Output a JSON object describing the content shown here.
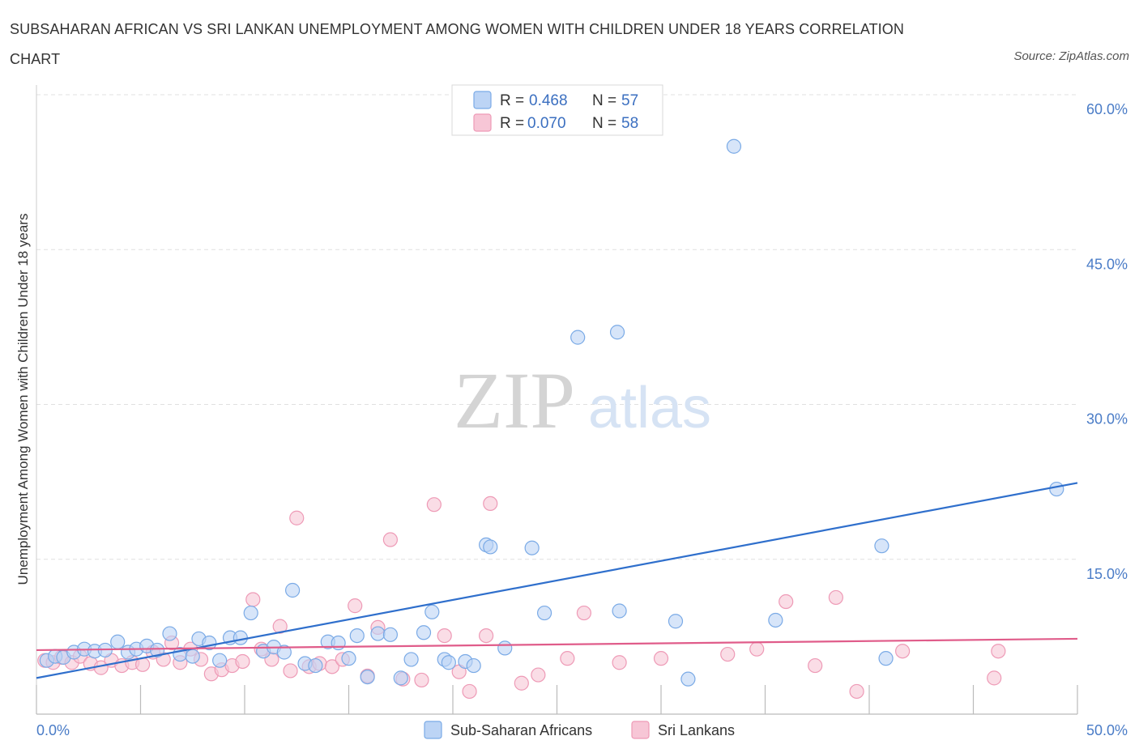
{
  "title": "SUBSAHARAN AFRICAN VS SRI LANKAN UNEMPLOYMENT AMONG WOMEN WITH CHILDREN UNDER 18 YEARS CORRELATION CHART",
  "source": "Source: ZipAtlas.com",
  "watermark": {
    "zip": "ZIP",
    "atlas": "atlas"
  },
  "legend_box": {
    "rows": [
      {
        "r_label": "R =",
        "r_value": "0.468",
        "n_label": "N =",
        "n_value": "57"
      },
      {
        "r_label": "R =",
        "r_value": "0.070",
        "n_label": "N =",
        "n_value": "58"
      }
    ]
  },
  "chart_data": {
    "type": "scatter",
    "ylabel": "Unemployment Among Women with Children Under 18 years",
    "xlim": [
      0,
      50
    ],
    "ylim": [
      0,
      60
    ],
    "x_tick_labels": [
      "0.0%",
      "50.0%"
    ],
    "y_ticks": [
      15,
      30,
      45,
      60
    ],
    "y_tick_labels": [
      "15.0%",
      "30.0%",
      "45.0%",
      "60.0%"
    ],
    "grid": true,
    "series": [
      {
        "name": "Sub-Saharan Africans",
        "color": "#7aaae6",
        "fill": "#bcd4f5",
        "line_color": "#2f6fcc",
        "trend": [
          [
            0,
            3.5
          ],
          [
            50,
            22.4
          ]
        ],
        "points": [
          [
            0.5,
            5.2
          ],
          [
            0.9,
            5.6
          ],
          [
            1.3,
            5.5
          ],
          [
            1.8,
            6.0
          ],
          [
            2.3,
            6.3
          ],
          [
            2.8,
            6.1
          ],
          [
            3.3,
            6.2
          ],
          [
            3.9,
            7.0
          ],
          [
            4.4,
            6.0
          ],
          [
            4.8,
            6.3
          ],
          [
            5.3,
            6.6
          ],
          [
            5.8,
            6.2
          ],
          [
            6.4,
            7.8
          ],
          [
            6.9,
            5.8
          ],
          [
            7.5,
            5.6
          ],
          [
            7.8,
            7.3
          ],
          [
            8.3,
            6.9
          ],
          [
            8.8,
            5.2
          ],
          [
            9.3,
            7.4
          ],
          [
            9.8,
            7.4
          ],
          [
            10.3,
            9.8
          ],
          [
            10.9,
            6.1
          ],
          [
            11.4,
            6.5
          ],
          [
            11.9,
            6.0
          ],
          [
            12.3,
            12.0
          ],
          [
            12.9,
            4.9
          ],
          [
            13.4,
            4.7
          ],
          [
            14.0,
            7.0
          ],
          [
            14.5,
            6.9
          ],
          [
            15.0,
            5.4
          ],
          [
            15.4,
            7.6
          ],
          [
            15.9,
            3.6
          ],
          [
            16.4,
            7.8
          ],
          [
            17.0,
            7.7
          ],
          [
            17.5,
            3.5
          ],
          [
            18.0,
            5.3
          ],
          [
            18.6,
            7.9
          ],
          [
            19.0,
            9.9
          ],
          [
            19.6,
            5.3
          ],
          [
            19.8,
            5.0
          ],
          [
            20.6,
            5.1
          ],
          [
            21.0,
            4.7
          ],
          [
            21.6,
            16.4
          ],
          [
            21.8,
            16.2
          ],
          [
            22.5,
            6.4
          ],
          [
            23.8,
            16.1
          ],
          [
            24.4,
            9.8
          ],
          [
            26.0,
            36.5
          ],
          [
            27.9,
            37.0
          ],
          [
            28.0,
            10.0
          ],
          [
            30.7,
            9.0
          ],
          [
            31.3,
            3.4
          ],
          [
            33.5,
            55.0
          ],
          [
            35.5,
            9.1
          ],
          [
            40.6,
            16.3
          ],
          [
            40.8,
            5.4
          ],
          [
            49.0,
            21.8
          ]
        ]
      },
      {
        "name": "Sri Lankans",
        "color": "#ee9ab6",
        "fill": "#f7c6d6",
        "line_color": "#e05c8a",
        "trend": [
          [
            0,
            6.2
          ],
          [
            50,
            7.3
          ]
        ],
        "points": [
          [
            0.4,
            5.2
          ],
          [
            0.8,
            5.0
          ],
          [
            1.2,
            5.5
          ],
          [
            1.7,
            5.0
          ],
          [
            2.1,
            5.6
          ],
          [
            2.6,
            4.9
          ],
          [
            3.1,
            4.5
          ],
          [
            3.6,
            5.2
          ],
          [
            4.1,
            4.7
          ],
          [
            4.6,
            5.0
          ],
          [
            5.1,
            4.8
          ],
          [
            5.6,
            6.0
          ],
          [
            6.1,
            5.3
          ],
          [
            6.5,
            6.9
          ],
          [
            6.9,
            5.0
          ],
          [
            7.4,
            6.3
          ],
          [
            7.9,
            5.3
          ],
          [
            8.4,
            3.9
          ],
          [
            8.9,
            4.3
          ],
          [
            9.4,
            4.7
          ],
          [
            9.9,
            5.1
          ],
          [
            10.4,
            11.1
          ],
          [
            10.8,
            6.3
          ],
          [
            11.3,
            5.3
          ],
          [
            11.7,
            8.5
          ],
          [
            12.2,
            4.2
          ],
          [
            12.5,
            19.0
          ],
          [
            13.1,
            4.6
          ],
          [
            13.6,
            4.9
          ],
          [
            14.2,
            4.6
          ],
          [
            14.7,
            5.3
          ],
          [
            15.3,
            10.5
          ],
          [
            15.9,
            3.7
          ],
          [
            16.4,
            8.4
          ],
          [
            17.0,
            16.9
          ],
          [
            17.6,
            3.4
          ],
          [
            18.5,
            3.3
          ],
          [
            19.1,
            20.3
          ],
          [
            19.6,
            7.6
          ],
          [
            20.3,
            4.1
          ],
          [
            20.8,
            2.2
          ],
          [
            21.6,
            7.6
          ],
          [
            21.8,
            20.4
          ],
          [
            23.3,
            3.0
          ],
          [
            24.1,
            3.8
          ],
          [
            25.5,
            5.4
          ],
          [
            26.3,
            9.8
          ],
          [
            28.0,
            5.0
          ],
          [
            30.0,
            5.4
          ],
          [
            33.2,
            5.8
          ],
          [
            34.6,
            6.3
          ],
          [
            36.0,
            10.9
          ],
          [
            37.4,
            4.7
          ],
          [
            38.4,
            11.3
          ],
          [
            39.4,
            2.2
          ],
          [
            41.6,
            6.1
          ],
          [
            46.0,
            3.5
          ],
          [
            46.2,
            6.1
          ]
        ]
      }
    ]
  }
}
